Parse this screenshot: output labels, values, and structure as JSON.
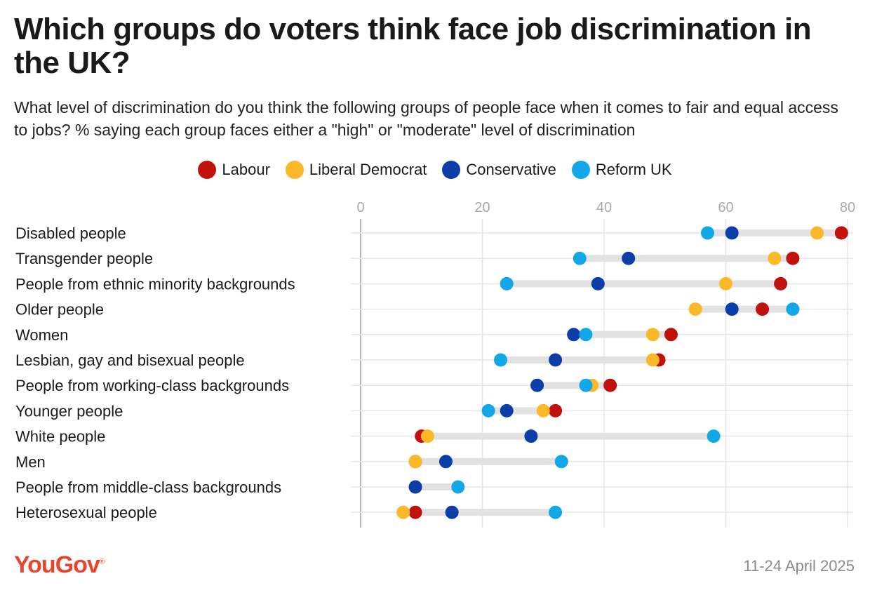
{
  "title": "Which groups do voters think face job discrimination in the UK?",
  "subtitle": "What level of discrimination do you think the following groups of people face when it comes to fair and equal access to jobs? % saying each group faces either a \"high\" or \"moderate\" level of discrimination",
  "brand": "YouGov",
  "date": "11-24 April 2025",
  "colors": {
    "Labour": "#c0110d",
    "Liberal Democrat": "#fbb829",
    "Conservative": "#0b3ea8",
    "Reform UK": "#12a8e8",
    "range_bar": "#e2e2e2",
    "grid": "#e6e6e6",
    "zero_axis": "#b5b5b5"
  },
  "chart_data": {
    "type": "scatter",
    "subtype": "dot-range",
    "title": "Which groups do voters think face job discrimination in the UK?",
    "xlim": [
      0,
      80
    ],
    "x_ticks": [
      0,
      20,
      40,
      60,
      80
    ],
    "grid": true,
    "legend_position": "top-center",
    "categories": [
      "Disabled people",
      "Transgender people",
      "People from ethnic minority backgrounds",
      "Older people",
      "Women",
      "Lesbian, gay and bisexual people",
      "People from working-class backgrounds",
      "Younger people",
      "White people",
      "Men",
      "People from middle-class backgrounds",
      "Heterosexual people"
    ],
    "series": [
      {
        "name": "Labour",
        "values": [
          79,
          71,
          69,
          66,
          51,
          49,
          41,
          32,
          10,
          9,
          9,
          9
        ]
      },
      {
        "name": "Liberal Democrat",
        "values": [
          75,
          68,
          60,
          55,
          48,
          48,
          38,
          30,
          11,
          9,
          9,
          7
        ]
      },
      {
        "name": "Conservative",
        "values": [
          61,
          44,
          39,
          61,
          35,
          32,
          29,
          24,
          28,
          14,
          9,
          15
        ]
      },
      {
        "name": "Reform UK",
        "values": [
          57,
          36,
          24,
          71,
          37,
          23,
          37,
          21,
          58,
          33,
          16,
          32
        ]
      }
    ]
  }
}
